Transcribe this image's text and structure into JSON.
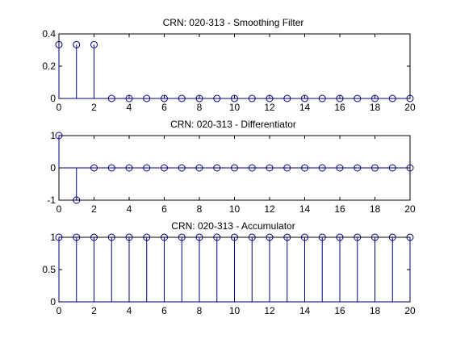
{
  "chart_data": [
    {
      "type": "stem",
      "title": "CRN: 020-313 - Smoothing Filter",
      "x": [
        0,
        1,
        2,
        3,
        4,
        5,
        6,
        7,
        8,
        9,
        10,
        11,
        12,
        13,
        14,
        15,
        16,
        17,
        18,
        19,
        20
      ],
      "values": [
        0.3333,
        0.3333,
        0.3333,
        0,
        0,
        0,
        0,
        0,
        0,
        0,
        0,
        0,
        0,
        0,
        0,
        0,
        0,
        0,
        0,
        0,
        0
      ],
      "xlim": [
        0,
        20
      ],
      "ylim": [
        0,
        0.4
      ],
      "xticks": [
        "0",
        "2",
        "4",
        "6",
        "8",
        "10",
        "12",
        "14",
        "16",
        "18",
        "20"
      ],
      "yticks": [
        "0",
        "0.2",
        "0.4"
      ],
      "grid": false,
      "color": "#00007f"
    },
    {
      "type": "stem",
      "title": "CRN: 020-313 - Differentiator",
      "x": [
        0,
        1,
        2,
        3,
        4,
        5,
        6,
        7,
        8,
        9,
        10,
        11,
        12,
        13,
        14,
        15,
        16,
        17,
        18,
        19,
        20
      ],
      "values": [
        1,
        -1,
        0,
        0,
        0,
        0,
        0,
        0,
        0,
        0,
        0,
        0,
        0,
        0,
        0,
        0,
        0,
        0,
        0,
        0,
        0
      ],
      "xlim": [
        0,
        20
      ],
      "ylim": [
        -1,
        1
      ],
      "xticks": [
        "0",
        "2",
        "4",
        "6",
        "8",
        "10",
        "12",
        "14",
        "16",
        "18",
        "20"
      ],
      "yticks": [
        "-1",
        "0",
        "1"
      ],
      "grid": false,
      "color": "#00007f"
    },
    {
      "type": "stem",
      "title": "CRN: 020-313 - Accumulator",
      "x": [
        0,
        1,
        2,
        3,
        4,
        5,
        6,
        7,
        8,
        9,
        10,
        11,
        12,
        13,
        14,
        15,
        16,
        17,
        18,
        19,
        20
      ],
      "values": [
        1,
        1,
        1,
        1,
        1,
        1,
        1,
        1,
        1,
        1,
        1,
        1,
        1,
        1,
        1,
        1,
        1,
        1,
        1,
        1,
        1
      ],
      "xlim": [
        0,
        20
      ],
      "ylim": [
        0,
        1
      ],
      "xticks": [
        "0",
        "2",
        "4",
        "6",
        "8",
        "10",
        "12",
        "14",
        "16",
        "18",
        "20"
      ],
      "yticks": [
        "0",
        "0.5",
        "1"
      ],
      "grid": false,
      "color": "#00007f"
    }
  ]
}
